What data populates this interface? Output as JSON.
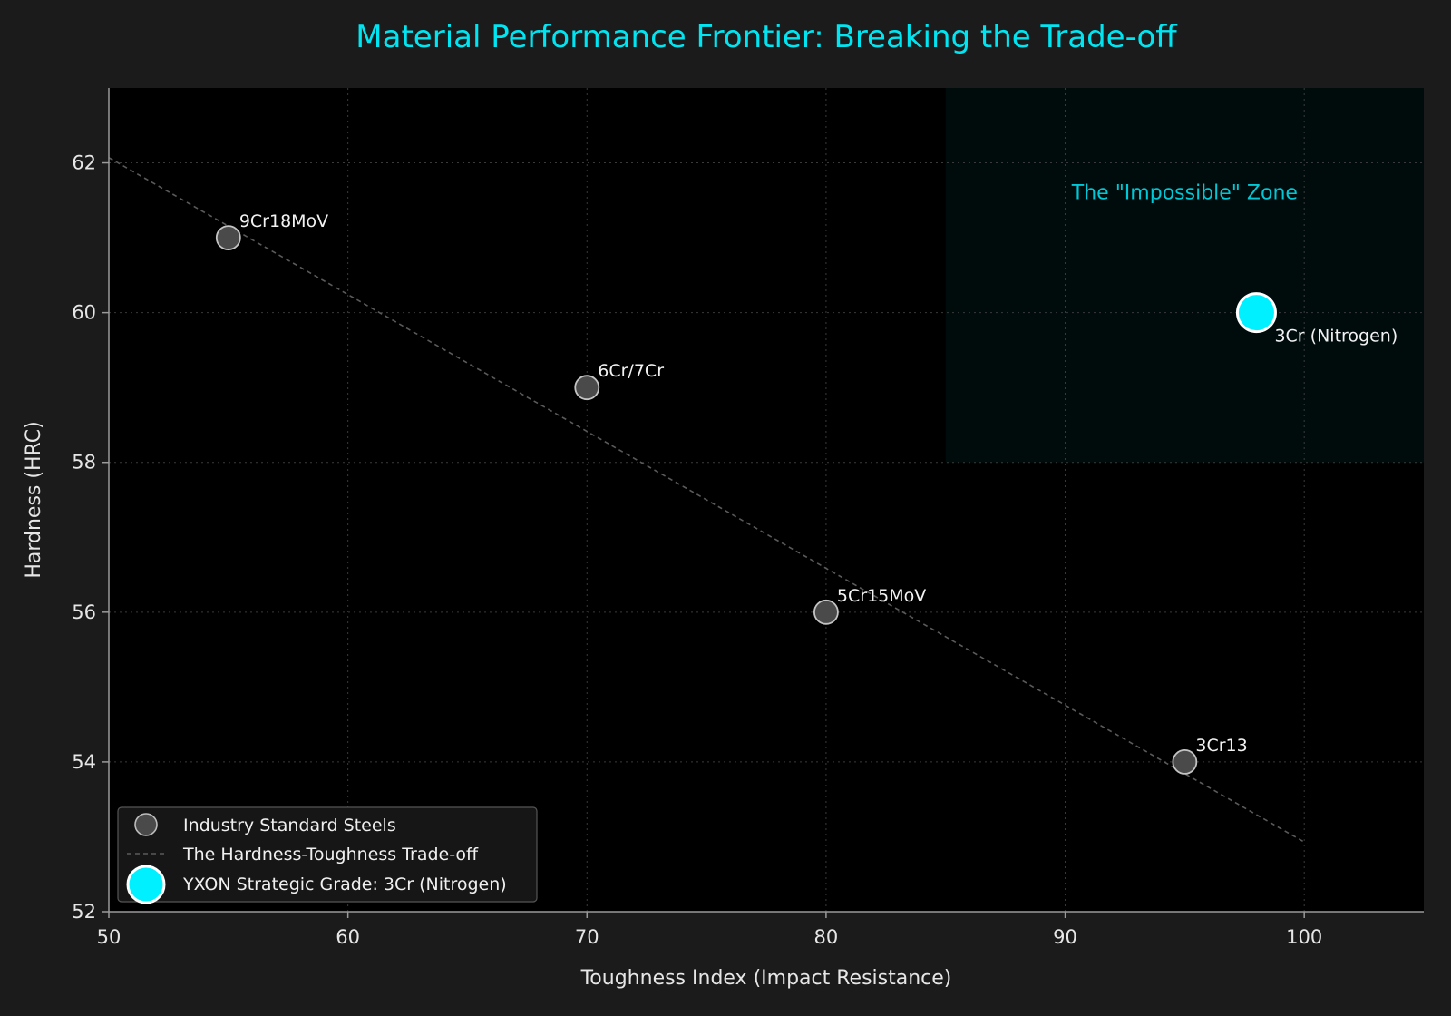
{
  "chart_data": {
    "type": "scatter",
    "title": "Material Performance Frontier: Breaking the Trade-off",
    "xlabel": "Toughness Index (Impact Resistance)",
    "ylabel": "Hardness (HRC)",
    "xlim": [
      50,
      105
    ],
    "ylim": [
      52,
      63
    ],
    "xticks": [
      50,
      60,
      70,
      80,
      90,
      100
    ],
    "yticks": [
      52,
      54,
      56,
      58,
      60,
      62
    ],
    "grid": true,
    "legend_position": "lower-left",
    "series": [
      {
        "name": "Industry Standard Steels",
        "color": "#4a4a4a",
        "points": [
          {
            "x": 55,
            "y": 61,
            "label": "9Cr18MoV"
          },
          {
            "x": 70,
            "y": 59,
            "label": "6Cr/7Cr"
          },
          {
            "x": 80,
            "y": 56,
            "label": "5Cr15MoV"
          },
          {
            "x": 95,
            "y": 54,
            "label": "3Cr13"
          }
        ]
      },
      {
        "name": "The Hardness-Toughness Trade-off",
        "style": "dashed-line",
        "color": "#5a5a5a",
        "x": [
          50,
          100
        ],
        "y": [
          62.07,
          52.93
        ]
      },
      {
        "name": "YXON Strategic Grade: 3Cr (Nitrogen)",
        "color": "#00f0ff",
        "points": [
          {
            "x": 98,
            "y": 60,
            "label": "3Cr (Nitrogen)"
          }
        ]
      }
    ],
    "annotations": [
      {
        "text": "The \"Impossible\" Zone",
        "region": {
          "x": [
            85,
            105
          ],
          "y": [
            58,
            63
          ]
        }
      }
    ]
  }
}
